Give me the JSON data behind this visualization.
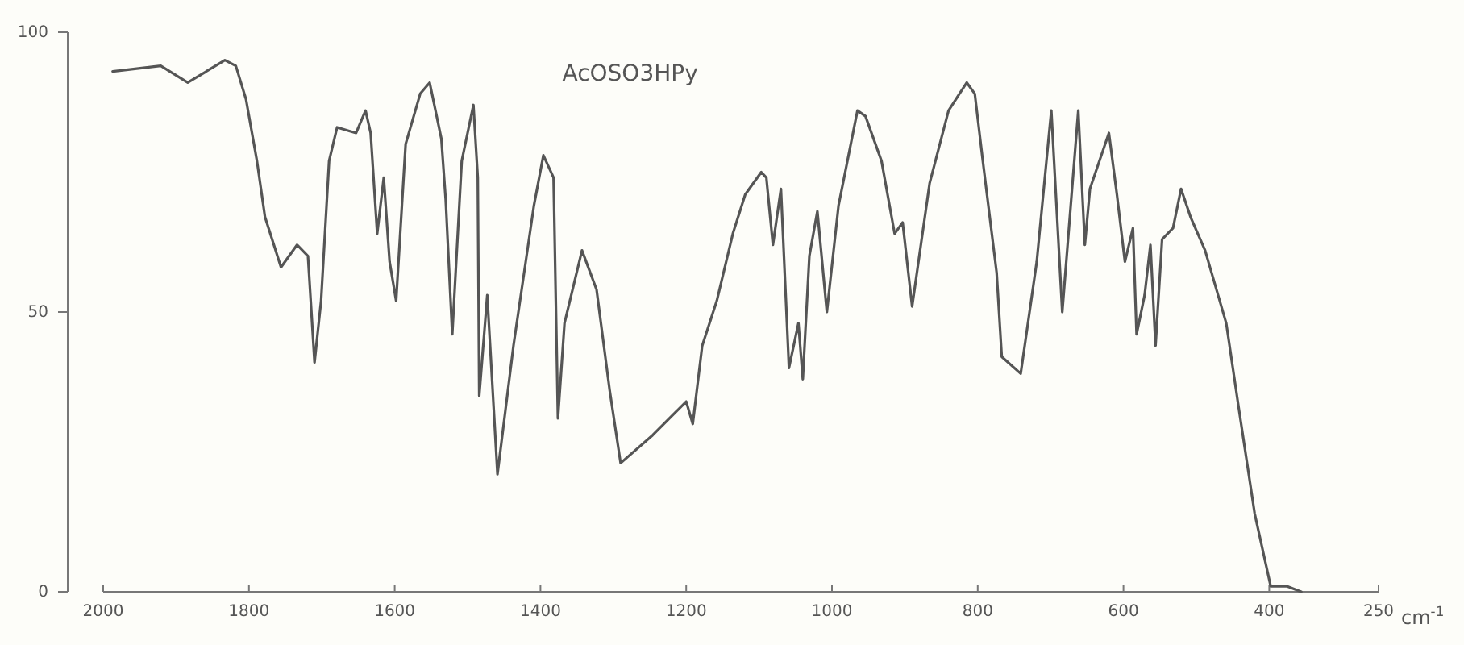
{
  "chart_data": {
    "type": "line",
    "title": "AcOSO3HPy",
    "xlabel": "cm$^{-1}$",
    "x": [
      1987,
      1921,
      1884,
      1833,
      1818,
      1804,
      1789,
      1778,
      1756,
      1734,
      1719,
      1710,
      1701,
      1690,
      1679,
      1653,
      1640,
      1633,
      1624,
      1615,
      1607,
      1598,
      1585,
      1565,
      1552,
      1536,
      1530,
      1521,
      1508,
      1492,
      1486,
      1484,
      1473,
      1459,
      1437,
      1409,
      1396,
      1382,
      1376,
      1367,
      1343,
      1323,
      1305,
      1290,
      1246,
      1200,
      1191,
      1178,
      1158,
      1136,
      1119,
      1097,
      1090,
      1081,
      1070,
      1059,
      1046,
      1040,
      1031,
      1020,
      1007,
      991,
      965,
      954,
      932,
      914,
      903,
      890,
      866,
      840,
      815,
      804,
      793,
      774,
      767,
      741,
      719,
      699,
      684,
      662,
      653,
      646,
      620,
      609,
      598,
      587,
      582,
      571,
      563,
      556,
      547,
      532,
      521,
      508,
      488,
      459,
      442,
      420,
      398,
      376,
      356
    ],
    "values": [
      93,
      94,
      91,
      95,
      94,
      88,
      77,
      67,
      58,
      62,
      60,
      41,
      52,
      77,
      83,
      82,
      86,
      82,
      64,
      74,
      59,
      52,
      80,
      89,
      91,
      81,
      70,
      46,
      77,
      87,
      74,
      35,
      53,
      21,
      44,
      69,
      78,
      74,
      31,
      48,
      61,
      54,
      36,
      23,
      28,
      34,
      30,
      44,
      52,
      64,
      71,
      75,
      74,
      62,
      72,
      40,
      48,
      38,
      60,
      68,
      50,
      69,
      86,
      85,
      77,
      64,
      66,
      51,
      73,
      86,
      91,
      89,
      77,
      57,
      42,
      39,
      59,
      86,
      50,
      86,
      62,
      72,
      82,
      71,
      59,
      65,
      46,
      53,
      62,
      44,
      63,
      65,
      72,
      67,
      61,
      48,
      33,
      14,
      1,
      1,
      0
    ],
    "color": "#555555",
    "line_style": "solid",
    "xlim": [
      2000,
      250
    ],
    "xticks": [
      2000,
      1800,
      1600,
      1400,
      1200,
      1000,
      800,
      600,
      400,
      250
    ],
    "ylim": [
      0,
      100
    ],
    "yticks": [
      0,
      50,
      100
    ],
    "grid": false
  }
}
